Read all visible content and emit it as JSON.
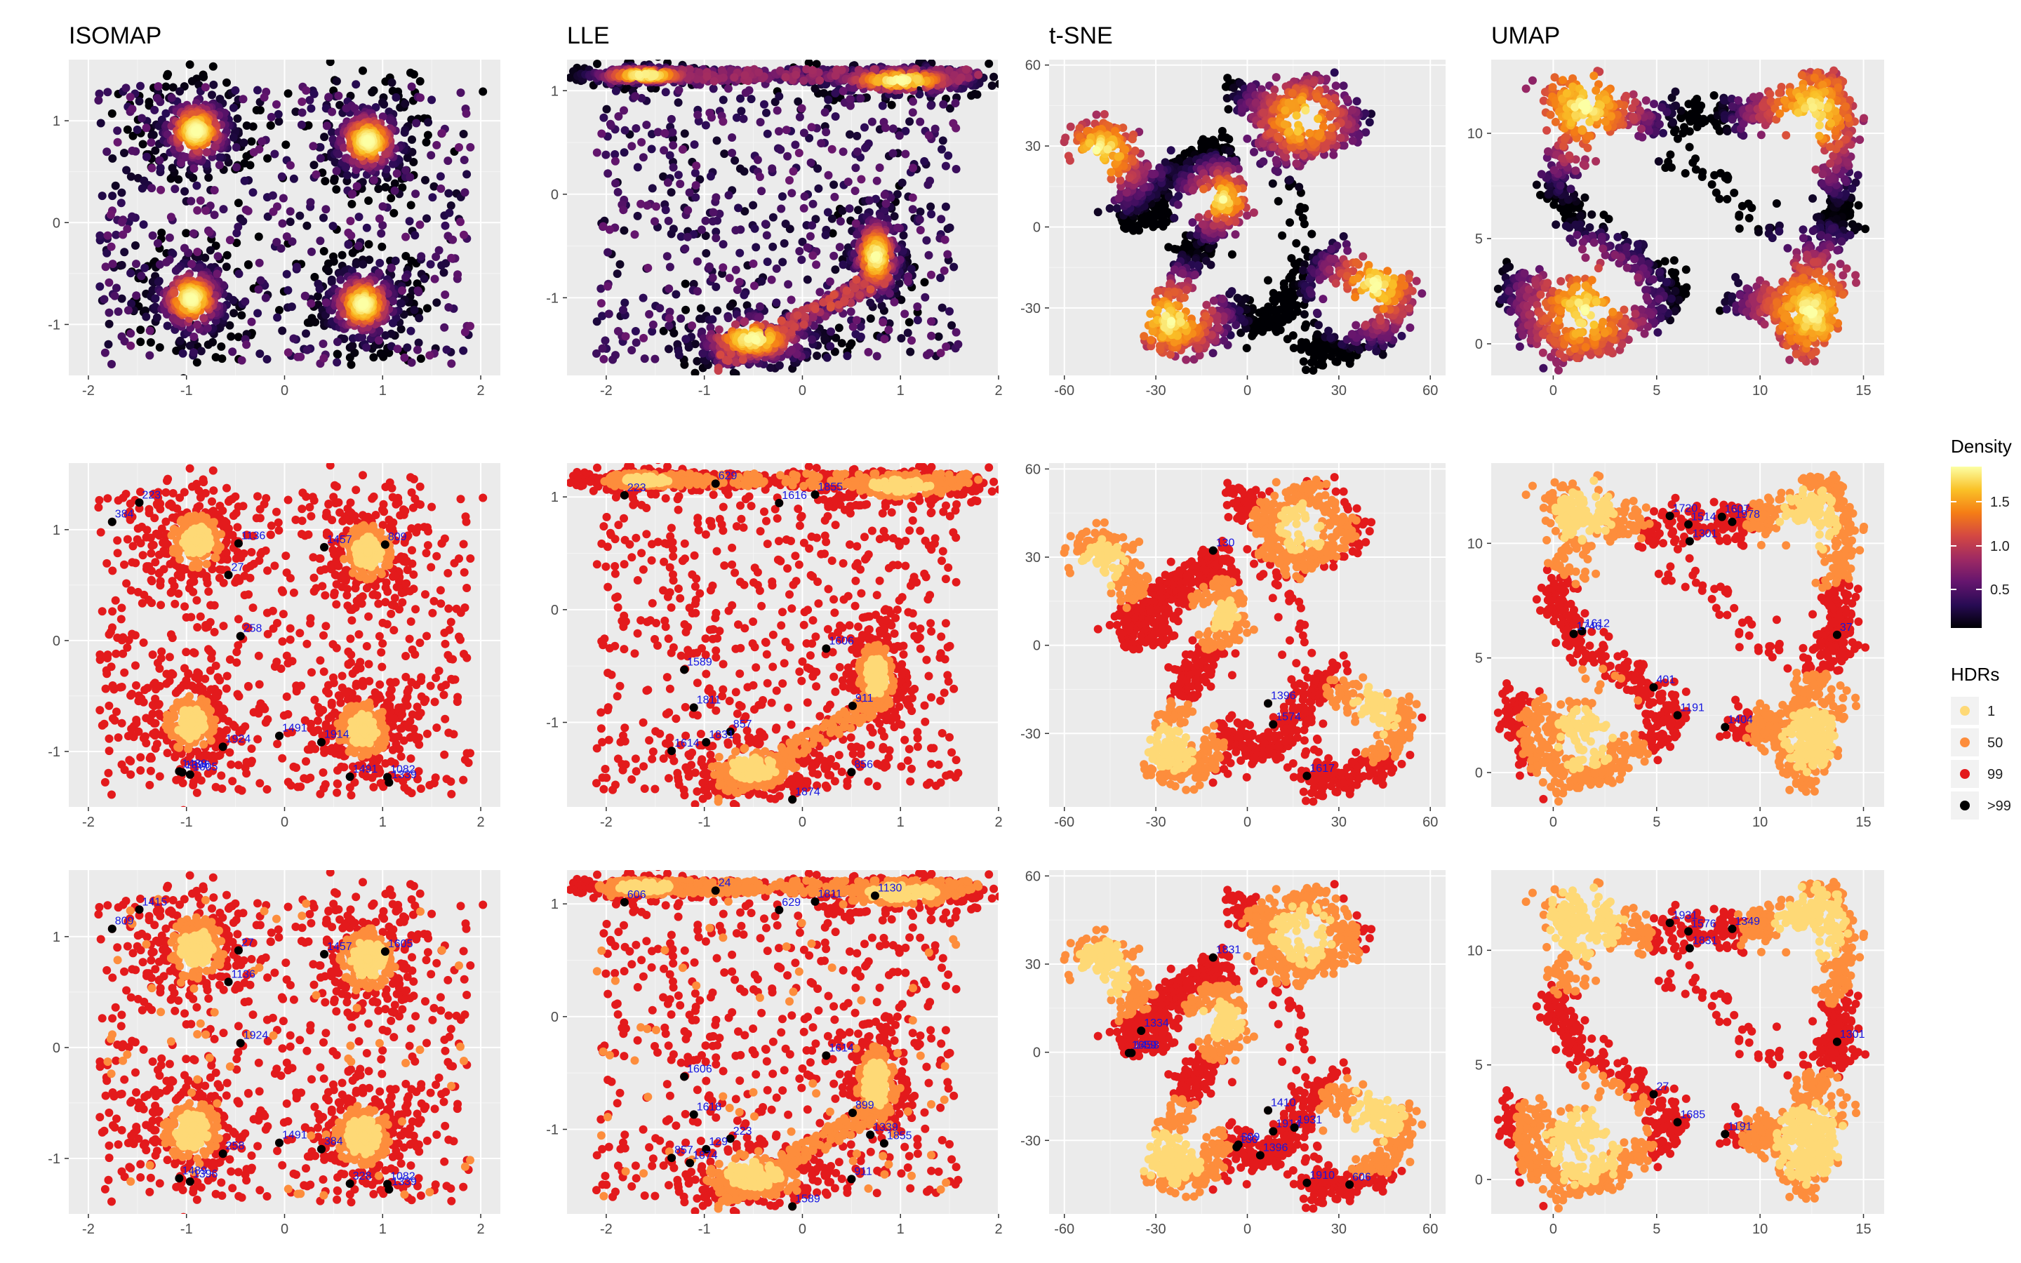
{
  "chart_data": {
    "type": "scatter",
    "methods": [
      "ISOMAP",
      "LLE",
      "t-SNE",
      "UMAP"
    ],
    "rows": [
      "density",
      "hdr",
      "hdr"
    ],
    "panels": [
      {
        "method": "ISOMAP",
        "xlim": [
          -2.2,
          2.2
        ],
        "ylim": [
          -1.5,
          1.6
        ],
        "xticks": [
          -2,
          -1,
          0,
          1,
          2
        ],
        "yticks": [
          -1,
          0,
          1
        ]
      },
      {
        "method": "LLE",
        "xlim": [
          -2.4,
          2.0
        ],
        "ylim": [
          -1.75,
          1.3
        ],
        "xticks": [
          -2,
          -1,
          0,
          1,
          2
        ],
        "yticks": [
          -1,
          0,
          1
        ]
      },
      {
        "method": "t-SNE",
        "xlim": [
          -65,
          65
        ],
        "ylim": [
          -55,
          62
        ],
        "xticks": [
          -60,
          -30,
          0,
          30,
          60
        ],
        "yticks": [
          -30,
          0,
          30,
          60
        ]
      },
      {
        "method": "UMAP",
        "xlim": [
          -3,
          16
        ],
        "ylim": [
          -1.5,
          13.5
        ],
        "xticks": [
          0,
          5,
          10,
          15
        ],
        "yticks": [
          0,
          5,
          10
        ]
      }
    ],
    "legend": {
      "density": {
        "title": "Density",
        "ticks": [
          "1.5",
          "1.0",
          "0.5"
        ]
      },
      "hdr": {
        "title": "HDRs",
        "levels": [
          {
            "label": "1",
            "color": "#fed976"
          },
          {
            "label": "50",
            "color": "#fd8d3c"
          },
          {
            "label": "99",
            "color": "#e31a1c"
          },
          {
            "label": ">99",
            "color": "#000000"
          }
        ]
      }
    },
    "annotations": [
      [
        [
          "1489",
          "1491",
          "223",
          "1457",
          "1082",
          "1339",
          "1491",
          "1914",
          "1924",
          "1136",
          "384",
          "258",
          "27",
          "809",
          "1605",
          "1396"
        ],
        [
          "1489",
          "1491",
          "1415",
          "1457",
          "1082",
          "1339",
          "328",
          "384",
          "258",
          "27",
          "809",
          "1924",
          "1136",
          "1605",
          "1396"
        ]
      ],
      [
        [
          "856",
          "911",
          "223",
          "629",
          "857",
          "1831",
          "1616",
          "1614",
          "1606",
          "1811",
          "1589",
          "1855",
          "1874",
          "1612"
        ],
        [
          "911",
          "899",
          "606",
          "24",
          "223",
          "129",
          "629",
          "857",
          "1614",
          "1618",
          "1606",
          "1811",
          "1589",
          "1871",
          "1855",
          "1874",
          "1339",
          "1130"
        ]
      ],
      [
        [
          "1574",
          "1617",
          "130",
          "1396"
        ],
        [
          "1914",
          "1910",
          "1831",
          "1410",
          "1931",
          "1334",
          "606",
          "1659",
          "1396",
          "130",
          "309",
          "1458"
        ]
      ],
      [
        [
          "401",
          "37",
          "1404",
          "1301",
          "1191",
          "1514",
          "1978",
          "1720",
          "1612",
          "1746",
          "1607"
        ],
        [
          "27",
          "1301",
          "1191",
          "1831",
          "1685",
          "1576",
          "1349",
          "1931"
        ]
      ]
    ]
  }
}
